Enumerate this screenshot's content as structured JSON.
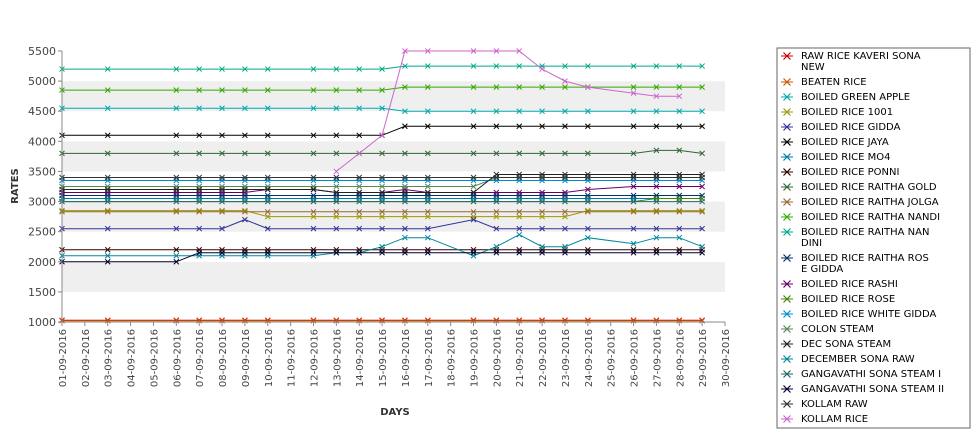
{
  "chart_data": {
    "type": "line",
    "title": "",
    "xlabel": "DAYS",
    "ylabel": "RATES",
    "ylim": [
      1000,
      5500
    ],
    "yticks": [
      1000,
      1500,
      2000,
      2500,
      3000,
      3500,
      4000,
      4500,
      5000,
      5500
    ],
    "grid": "alternating horizontal bands",
    "legend_position": "right",
    "categories": [
      "01-09-2016",
      "02-09-2016",
      "03-09-2016",
      "04-09-2016",
      "05-09-2016",
      "06-09-2016",
      "07-09-2016",
      "08-09-2016",
      "09-09-2016",
      "10-09-2016",
      "11-09-2016",
      "12-09-2016",
      "13-09-2016",
      "14-09-2016",
      "15-09-2016",
      "16-09-2016",
      "17-09-2016",
      "18-09-2016",
      "19-09-2016",
      "20-09-2016",
      "21-09-2016",
      "22-09-2016",
      "23-09-2016",
      "24-09-2016",
      "25-09-2016",
      "26-09-2016",
      "27-09-2016",
      "28-09-2016",
      "29-09-2016",
      "30-09-2016"
    ],
    "series": [
      {
        "name": " RAW RICE KAVERI SONA NEW",
        "color": "#cc0000",
        "values": [
          1030,
          null,
          1030,
          null,
          null,
          1030,
          1030,
          1030,
          1030,
          1030,
          null,
          1030,
          1030,
          1030,
          1030,
          1030,
          1030,
          null,
          1030,
          1030,
          1030,
          1030,
          1030,
          1030,
          null,
          1030,
          1030,
          1030,
          1030,
          null
        ]
      },
      {
        "name": "BEATEN RICE",
        "color": "#cc5500",
        "values": [
          1020,
          null,
          1020,
          null,
          null,
          1020,
          1020,
          1020,
          1020,
          1020,
          null,
          1020,
          1020,
          1020,
          1020,
          1020,
          1020,
          null,
          1020,
          1020,
          1020,
          1020,
          1020,
          1020,
          null,
          1020,
          1020,
          1020,
          1020,
          null
        ]
      },
      {
        "name": "BOILED GREEN APPLE",
        "color": "#00aaaa",
        "values": [
          4550,
          null,
          4550,
          null,
          null,
          4550,
          4550,
          4550,
          4550,
          4550,
          null,
          4550,
          4550,
          4550,
          4550,
          4500,
          4500,
          null,
          4500,
          4500,
          4500,
          4500,
          4500,
          4500,
          null,
          4500,
          4500,
          4500,
          4500,
          null
        ]
      },
      {
        "name": "BOILED RICE 1001",
        "color": "#999900",
        "values": [
          2850,
          null,
          2850,
          null,
          null,
          2850,
          2850,
          2850,
          2850,
          2750,
          null,
          2750,
          2750,
          2750,
          2750,
          2750,
          2750,
          null,
          2750,
          2750,
          2750,
          2750,
          2750,
          2850,
          null,
          2850,
          2850,
          2850,
          2850,
          null
        ]
      },
      {
        "name": "BOILED RICE GIDDA",
        "color": "#333399",
        "values": [
          2550,
          null,
          2550,
          null,
          null,
          2550,
          2550,
          2550,
          2700,
          2550,
          null,
          2550,
          2550,
          2550,
          2550,
          2550,
          2550,
          null,
          2700,
          2550,
          2550,
          2550,
          2550,
          2550,
          null,
          2550,
          2550,
          2550,
          2550,
          null
        ]
      },
      {
        "name": "BOILED RICE JAYA",
        "color": "#000000",
        "values": [
          4100,
          null,
          4100,
          null,
          null,
          4100,
          4100,
          4100,
          4100,
          4100,
          null,
          4100,
          4100,
          4100,
          4100,
          4250,
          4250,
          null,
          4250,
          4250,
          4250,
          4250,
          4250,
          4250,
          null,
          4250,
          4250,
          4250,
          4250,
          null
        ]
      },
      {
        "name": "BOILED RICE MO4",
        "color": "#0077aa",
        "values": [
          3050,
          null,
          3050,
          null,
          null,
          3050,
          3050,
          3050,
          3050,
          3050,
          null,
          3050,
          3050,
          3050,
          3050,
          3050,
          3050,
          null,
          3050,
          3050,
          3050,
          3050,
          3050,
          3050,
          null,
          3050,
          3050,
          3050,
          3050,
          null
        ]
      },
      {
        "name": "BOILED RICE PONNI",
        "color": "#330000",
        "values": [
          2200,
          null,
          2200,
          null,
          null,
          2200,
          2200,
          2200,
          2200,
          2200,
          null,
          2200,
          2200,
          2200,
          2200,
          2200,
          2200,
          null,
          2200,
          2200,
          2200,
          2200,
          2200,
          2200,
          null,
          2200,
          2200,
          2200,
          2200,
          null
        ]
      },
      {
        "name": "BOILED RICE RAITHA GOLD",
        "color": "#336633",
        "values": [
          3800,
          null,
          3800,
          null,
          null,
          3800,
          3800,
          3800,
          3800,
          3800,
          null,
          3800,
          3800,
          3800,
          3800,
          3800,
          3800,
          null,
          3800,
          3800,
          3800,
          3800,
          3800,
          3800,
          null,
          3800,
          3850,
          3850,
          3800,
          null
        ]
      },
      {
        "name": "BOILED RICE RAITHA JOLGA",
        "color": "#996633",
        "values": [
          2830,
          null,
          2830,
          null,
          null,
          2830,
          2830,
          2830,
          2830,
          2830,
          null,
          2830,
          2830,
          2830,
          2830,
          2830,
          2830,
          null,
          2830,
          2830,
          2830,
          2830,
          2830,
          2830,
          null,
          2830,
          2830,
          2830,
          2830,
          null
        ]
      },
      {
        "name": "BOILED RICE RAITHA NANDI",
        "color": "#33aa00",
        "values": [
          4850,
          null,
          4850,
          null,
          null,
          4850,
          4850,
          4850,
          4850,
          4850,
          null,
          4850,
          4850,
          4850,
          4850,
          4900,
          4900,
          null,
          4900,
          4900,
          4900,
          4900,
          4900,
          4900,
          null,
          4900,
          4900,
          4900,
          4900,
          null
        ]
      },
      {
        "name": "BOILED RICE RAITHA NANDINI",
        "color": "#00aa88",
        "values": [
          5200,
          null,
          5200,
          null,
          null,
          5200,
          5200,
          5200,
          5200,
          5200,
          null,
          5200,
          5200,
          5200,
          5200,
          5250,
          5250,
          null,
          5250,
          5250,
          5250,
          5250,
          5250,
          5250,
          null,
          5250,
          5250,
          5250,
          5250,
          null
        ]
      },
      {
        "name": "BOILED RICE RAITHA ROSE GIDDA",
        "color": "#003366",
        "values": [
          3100,
          null,
          3100,
          null,
          null,
          3100,
          3100,
          3100,
          3100,
          3100,
          null,
          3100,
          3100,
          3100,
          3100,
          3100,
          3100,
          null,
          3100,
          3100,
          3100,
          3100,
          3100,
          3100,
          null,
          3100,
          3100,
          3100,
          3100,
          null
        ]
      },
      {
        "name": "BOILED RICE RASHI",
        "color": "#660066",
        "values": [
          3150,
          null,
          3150,
          null,
          null,
          3150,
          3150,
          3150,
          3150,
          3200,
          null,
          3200,
          3150,
          3150,
          3150,
          3200,
          3150,
          null,
          3150,
          3150,
          3150,
          3150,
          3150,
          3200,
          null,
          3250,
          3250,
          3250,
          3250,
          null
        ]
      },
      {
        "name": "BOILED RICE ROSE",
        "color": "#448800",
        "values": [
          3000,
          null,
          3000,
          null,
          null,
          3000,
          3000,
          3000,
          3000,
          3000,
          null,
          3000,
          3000,
          3000,
          3000,
          3000,
          3000,
          null,
          3000,
          3000,
          3000,
          3000,
          3000,
          3000,
          null,
          3000,
          3050,
          3050,
          3050,
          null
        ]
      },
      {
        "name": "BOILED RICE WHITE GIDDA",
        "color": "#0088cc",
        "values": [
          3350,
          null,
          3350,
          null,
          null,
          3350,
          3350,
          3350,
          3350,
          3350,
          null,
          3350,
          3350,
          3350,
          3350,
          3350,
          3350,
          null,
          3350,
          3350,
          3350,
          3350,
          3350,
          3350,
          null,
          3350,
          3350,
          3350,
          3350,
          null
        ]
      },
      {
        "name": "COLON STEAM",
        "color": "#558855",
        "values": [
          3250,
          null,
          3250,
          null,
          null,
          3250,
          3250,
          3250,
          3250,
          3250,
          null,
          3250,
          3250,
          3250,
          3250,
          3250,
          3250,
          null,
          3250,
          3400,
          3400,
          3400,
          3400,
          3400,
          null,
          3400,
          3400,
          3400,
          3400,
          null
        ]
      },
      {
        "name": "DEC SONA STEAM",
        "color": "#222222",
        "values": [
          3200,
          null,
          3200,
          null,
          null,
          3200,
          3200,
          3200,
          3200,
          3200,
          null,
          3200,
          3150,
          3150,
          3150,
          3150,
          3150,
          null,
          3150,
          3450,
          3450,
          3450,
          3450,
          3450,
          null,
          3450,
          3450,
          3450,
          3450,
          null
        ]
      },
      {
        "name": "DECEMBER SONA RAW",
        "color": "#008899",
        "values": [
          2100,
          null,
          2100,
          null,
          null,
          2100,
          2100,
          2100,
          2100,
          2100,
          null,
          2100,
          2150,
          2150,
          2250,
          2400,
          2400,
          null,
          2100,
          2250,
          2450,
          2250,
          2250,
          2400,
          null,
          2300,
          2400,
          2400,
          2250,
          null
        ]
      },
      {
        "name": "GANGAVATHI SONA STEAM I",
        "color": "#226666",
        "values": [
          3000,
          null,
          3000,
          null,
          null,
          3000,
          3000,
          3000,
          3000,
          3000,
          null,
          3000,
          3000,
          3000,
          3000,
          3000,
          3000,
          null,
          3000,
          3000,
          3000,
          3000,
          3000,
          3000,
          null,
          3000,
          3000,
          3000,
          3000,
          null
        ]
      },
      {
        "name": "GANGAVATHI SONA STEAM II",
        "color": "#000033",
        "values": [
          2000,
          null,
          2000,
          null,
          null,
          2000,
          2150,
          2150,
          2150,
          2150,
          null,
          2150,
          2150,
          2150,
          2150,
          2150,
          2150,
          null,
          2150,
          2150,
          2150,
          2150,
          2150,
          2150,
          null,
          2150,
          2150,
          2150,
          2150,
          null
        ]
      },
      {
        "name": "KOLLAM RAW",
        "color": "#333333",
        "values": [
          3400,
          null,
          3400,
          null,
          null,
          3400,
          3400,
          3400,
          3400,
          3400,
          null,
          3400,
          3400,
          3400,
          3400,
          3400,
          3400,
          null,
          3400,
          3400,
          3400,
          3400,
          3400,
          3400,
          null,
          3400,
          3400,
          3400,
          3400,
          null
        ]
      },
      {
        "name": "KOLLAM RICE",
        "color": "#cc66cc",
        "values": [
          null,
          null,
          null,
          null,
          null,
          null,
          null,
          null,
          null,
          null,
          null,
          null,
          3500,
          3800,
          4100,
          5500,
          5500,
          null,
          5500,
          5500,
          5500,
          5200,
          5000,
          4900,
          null,
          4800,
          4750,
          4750,
          null,
          null
        ]
      }
    ]
  }
}
